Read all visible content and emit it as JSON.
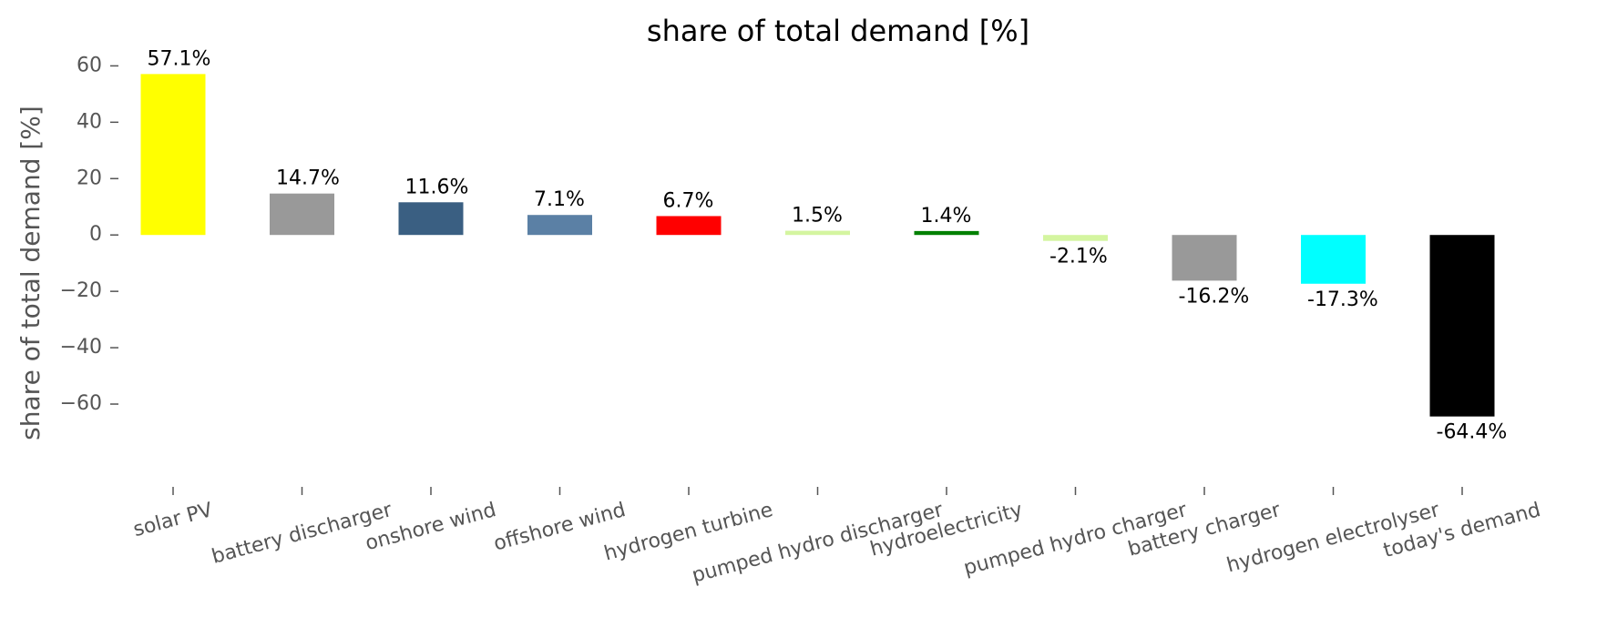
{
  "chart_data": {
    "type": "bar",
    "title": "share of total demand [%]",
    "ylabel": "share of total demand [%]",
    "categories": [
      "solar PV",
      "battery discharger",
      "onshore wind",
      "offshore wind",
      "hydrogen turbine",
      "pumped hydro discharger",
      "hydroelectricity",
      "pumped hydro charger",
      "battery charger",
      "hydrogen electrolyser",
      "today's demand"
    ],
    "values": [
      57.1,
      14.7,
      11.6,
      7.1,
      6.7,
      1.5,
      1.4,
      -2.1,
      -16.2,
      -17.3,
      -64.4
    ],
    "value_labels": [
      "57.1%",
      "14.7%",
      "11.6%",
      "7.1%",
      "6.7%",
      "1.5%",
      "1.4%",
      "-2.1%",
      "-16.2%",
      "-17.3%",
      "-64.4%"
    ],
    "colors": [
      "#ffff00",
      "#999999",
      "#3a5f82",
      "#5b80a5",
      "#ff0000",
      "#d4f5a0",
      "#008000",
      "#d4f5a0",
      "#999999",
      "#00ffff",
      "#000000"
    ],
    "ylim": [
      -70,
      64
    ],
    "yticks": [
      {
        "value": -60,
        "label": "−60"
      },
      {
        "value": -40,
        "label": "−40"
      },
      {
        "value": -20,
        "label": "−20"
      },
      0,
      20,
      40,
      60
    ],
    "grid": false
  }
}
